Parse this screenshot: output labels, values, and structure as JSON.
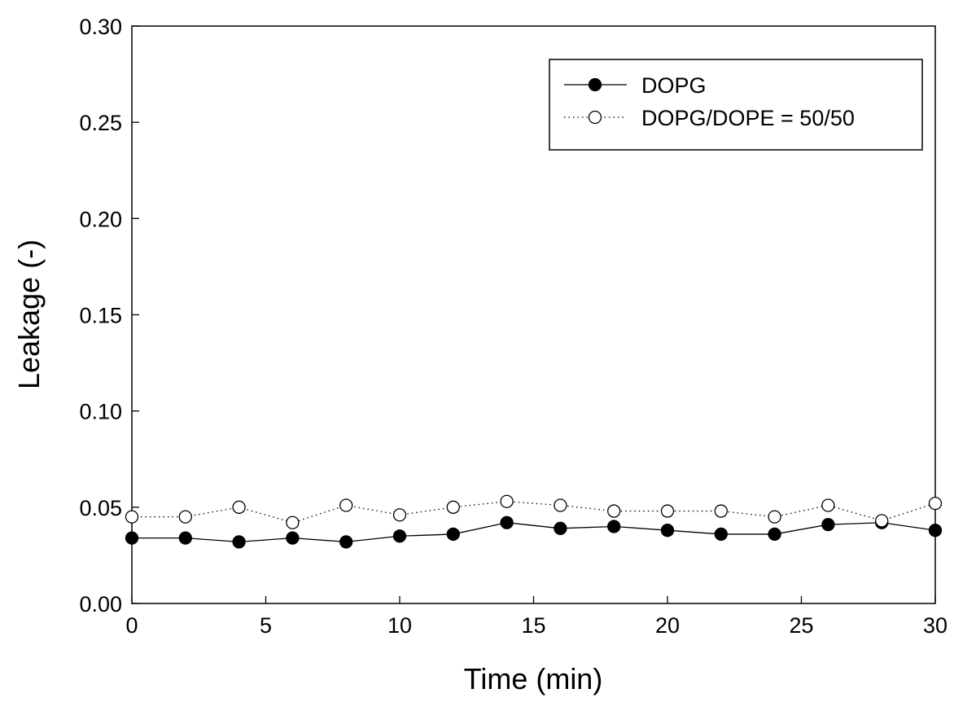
{
  "chart_data": {
    "type": "line",
    "title": "",
    "xlabel": "Time (min)",
    "ylabel": "Leakage (-)",
    "xlim": [
      0,
      30
    ],
    "ylim": [
      0,
      0.3
    ],
    "x_ticks": [
      "0",
      "5",
      "10",
      "15",
      "20",
      "25",
      "30"
    ],
    "y_ticks": [
      "0.00",
      "0.05",
      "0.10",
      "0.15",
      "0.20",
      "0.25",
      "0.30"
    ],
    "x_tick_values": [
      0,
      5,
      10,
      15,
      20,
      25,
      30
    ],
    "y_tick_values": [
      0,
      0.05,
      0.1,
      0.15,
      0.2,
      0.25,
      0.3
    ],
    "grid": false,
    "legend_position": "top-right",
    "x": [
      0,
      2,
      4,
      6,
      8,
      10,
      12,
      14,
      16,
      18,
      20,
      22,
      24,
      26,
      28,
      30
    ],
    "series": [
      {
        "name": "DOPG",
        "marker": "filled-circle",
        "line_style": "solid",
        "color": "#000000",
        "values": [
          0.034,
          0.034,
          0.032,
          0.034,
          0.032,
          0.035,
          0.036,
          0.042,
          0.039,
          0.04,
          0.038,
          0.036,
          0.036,
          0.041,
          0.042,
          0.038
        ]
      },
      {
        "name": "DOPG/DOPE = 50/50",
        "marker": "open-circle",
        "line_style": "dotted",
        "color": "#000000",
        "values": [
          0.045,
          0.045,
          0.05,
          0.042,
          0.051,
          0.046,
          0.05,
          0.053,
          0.051,
          0.048,
          0.048,
          0.048,
          0.045,
          0.051,
          0.043,
          0.052
        ]
      }
    ]
  }
}
